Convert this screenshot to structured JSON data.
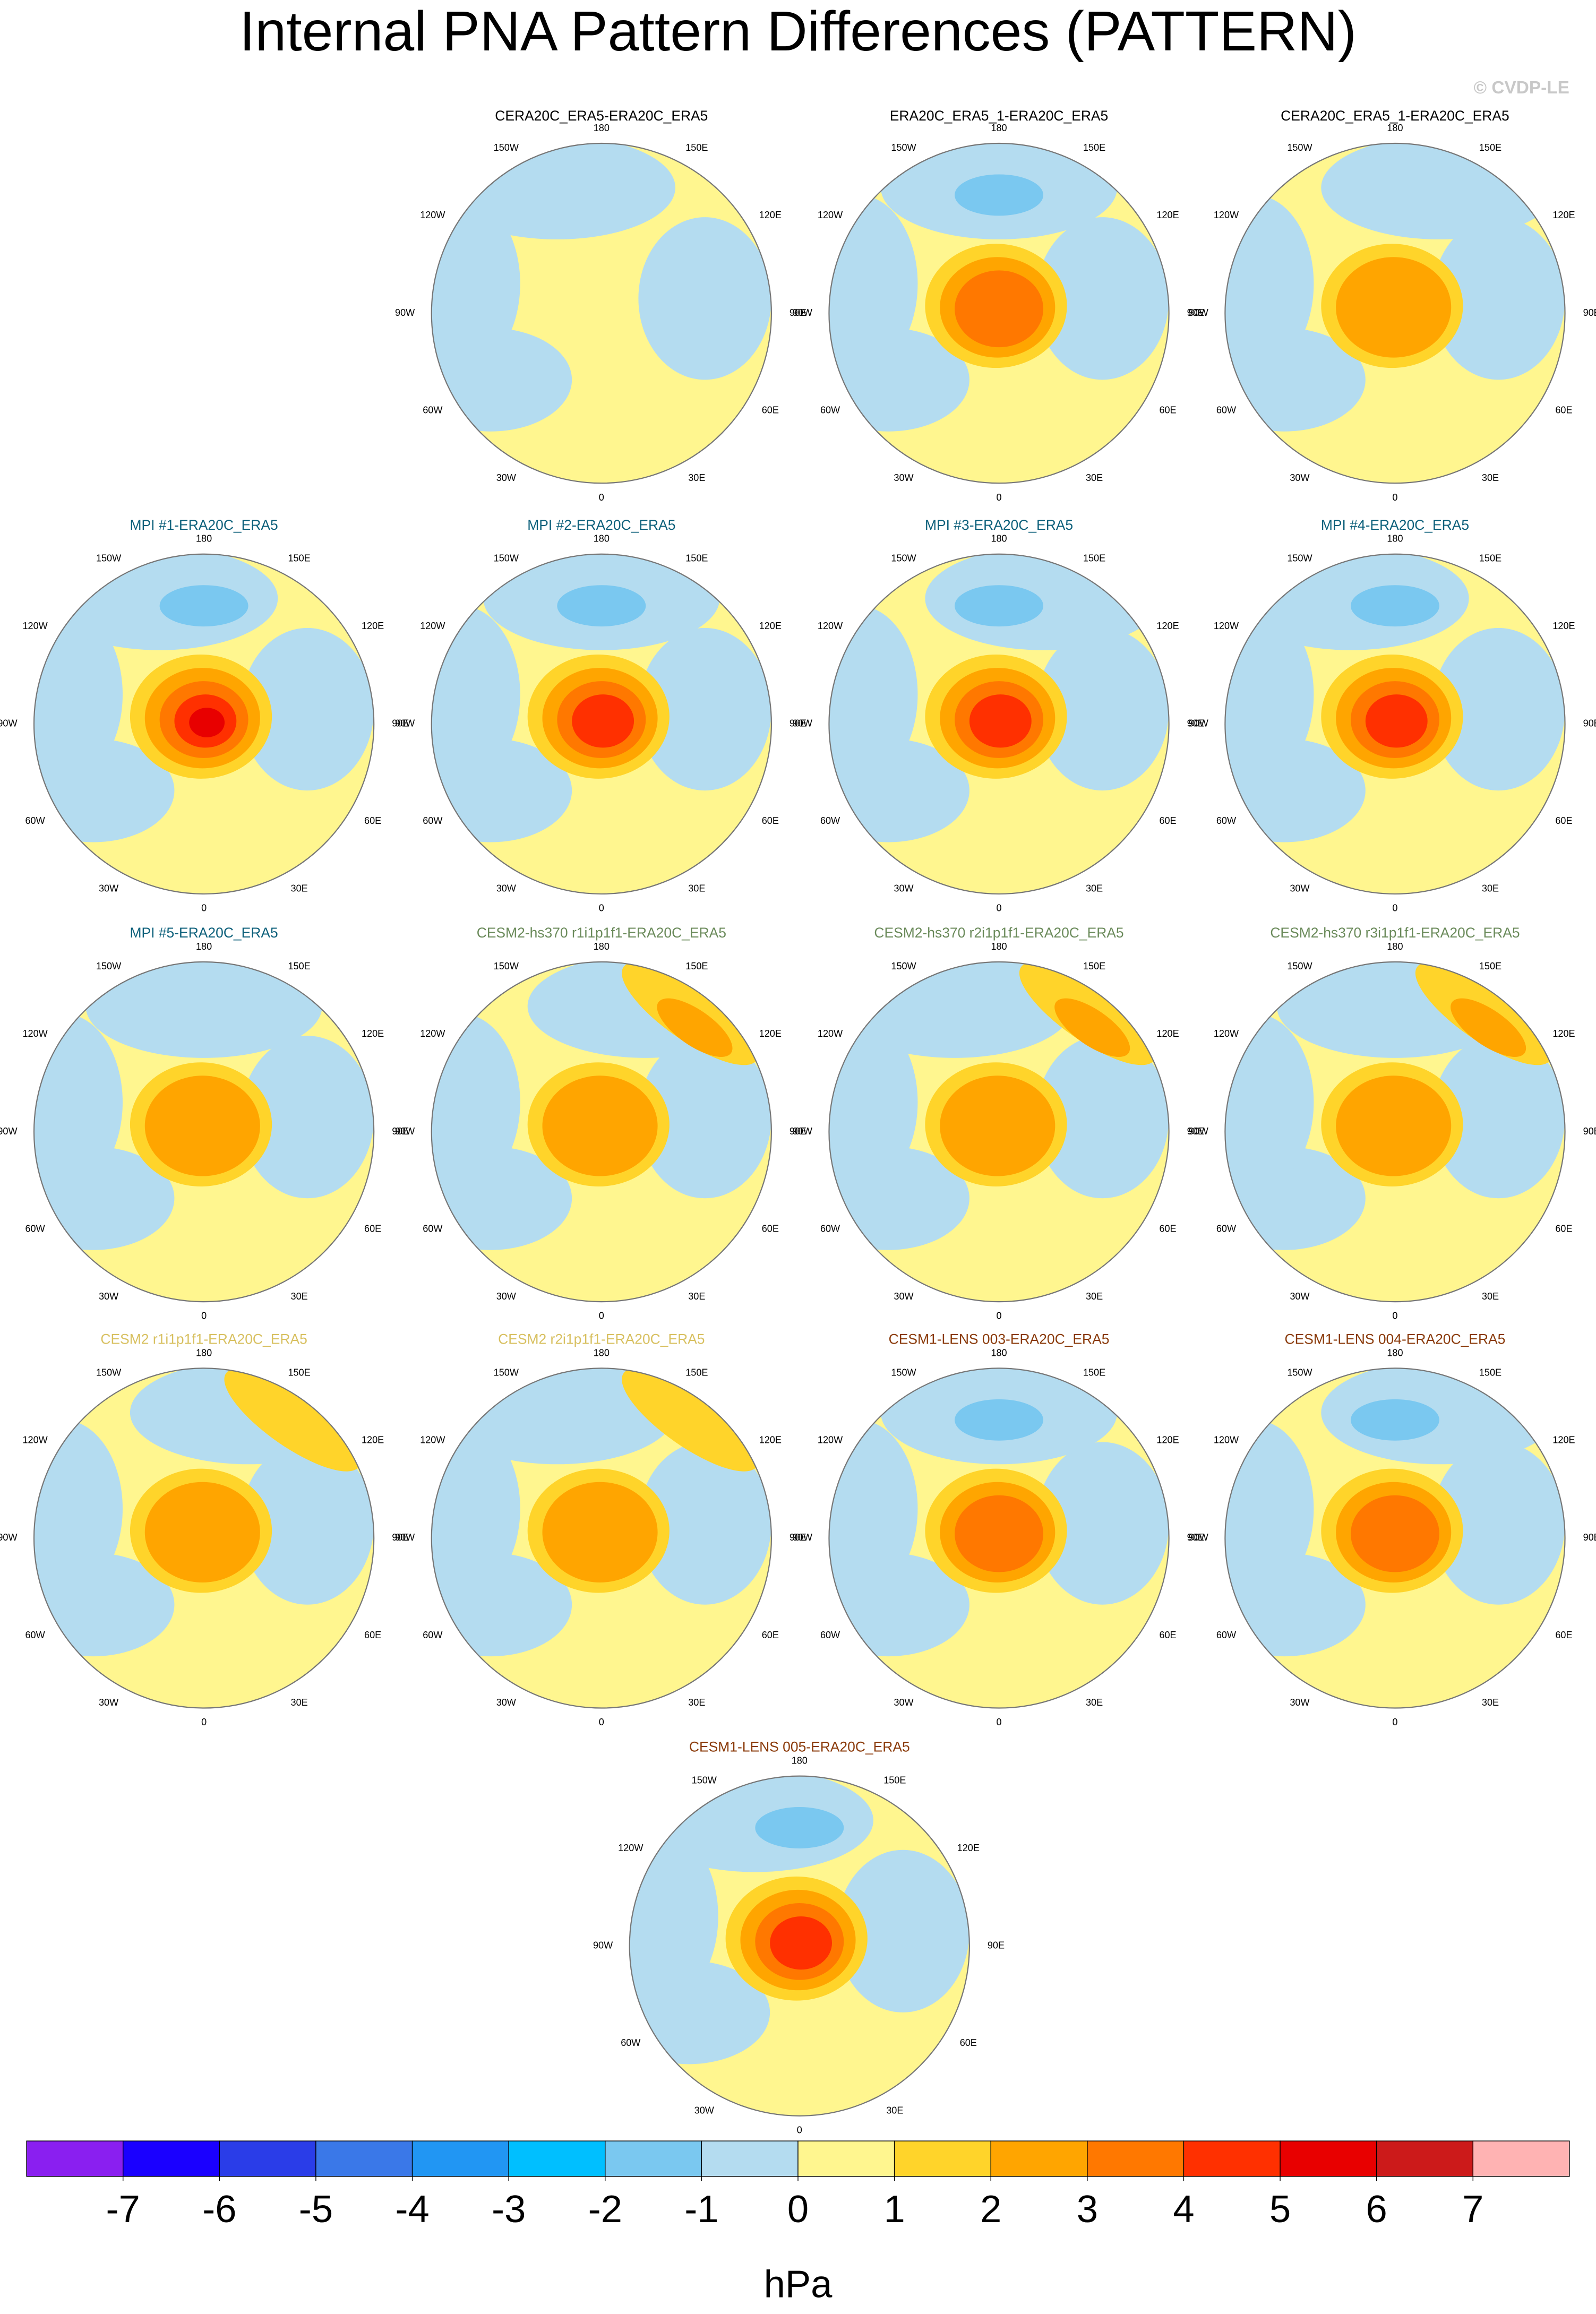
{
  "title": "Internal PNA Pattern Differences (PATTERN)",
  "copyright": "© CVDP-LE",
  "map_labels": [
    "180",
    "150E",
    "120E",
    "90E",
    "60E",
    "30E",
    "0",
    "30W",
    "60W",
    "90W",
    "120W",
    "150W"
  ],
  "panels": [
    {
      "title": "CERA20C_ERA5-ERA20C_ERA5",
      "title_color": "#000000"
    },
    {
      "title": "ERA20C_ERA5_1-ERA20C_ERA5",
      "title_color": "#000000"
    },
    {
      "title": "CERA20C_ERA5_1-ERA20C_ERA5",
      "title_color": "#000000"
    },
    {
      "title": "MPI #1-ERA20C_ERA5",
      "title_color": "#0b5f7a"
    },
    {
      "title": "MPI #2-ERA20C_ERA5",
      "title_color": "#0b5f7a"
    },
    {
      "title": "MPI #3-ERA20C_ERA5",
      "title_color": "#0b5f7a"
    },
    {
      "title": "MPI #4-ERA20C_ERA5",
      "title_color": "#0b5f7a"
    },
    {
      "title": "MPI #5-ERA20C_ERA5",
      "title_color": "#0b5f7a"
    },
    {
      "title": "CESM2-hs370 r1i1p1f1-ERA20C_ERA5",
      "title_color": "#6a8a5a"
    },
    {
      "title": "CESM2-hs370 r2i1p1f1-ERA20C_ERA5",
      "title_color": "#6a8a5a"
    },
    {
      "title": "CESM2-hs370 r3i1p1f1-ERA20C_ERA5",
      "title_color": "#6a8a5a"
    },
    {
      "title": "CESM2 r1i1p1f1-ERA20C_ERA5",
      "title_color": "#d8c060"
    },
    {
      "title": "CESM2 r2i1p1f1-ERA20C_ERA5",
      "title_color": "#d8c060"
    },
    {
      "title": "CESM1-LENS 003-ERA20C_ERA5",
      "title_color": "#8a3a0a"
    },
    {
      "title": "CESM1-LENS 004-ERA20C_ERA5",
      "title_color": "#8a3a0a"
    },
    {
      "title": "CESM1-LENS 005-ERA20C_ERA5",
      "title_color": "#8a3a0a"
    }
  ],
  "colorbar": {
    "ticks": [
      -7,
      -6,
      -5,
      -4,
      -3,
      -2,
      -1,
      0,
      1,
      2,
      3,
      4,
      5,
      6,
      7
    ],
    "colors": [
      "#8a1ff0",
      "#1a00ff",
      "#2a3de8",
      "#3a78e8",
      "#2196f3",
      "#00bfff",
      "#7ac8f0",
      "#b4dcf0",
      "#fff68f",
      "#ffd42a",
      "#ffa500",
      "#ff7800",
      "#ff3000",
      "#e80000",
      "#cc1a1a",
      "#ffb3b3"
    ],
    "label": "hPa"
  }
}
